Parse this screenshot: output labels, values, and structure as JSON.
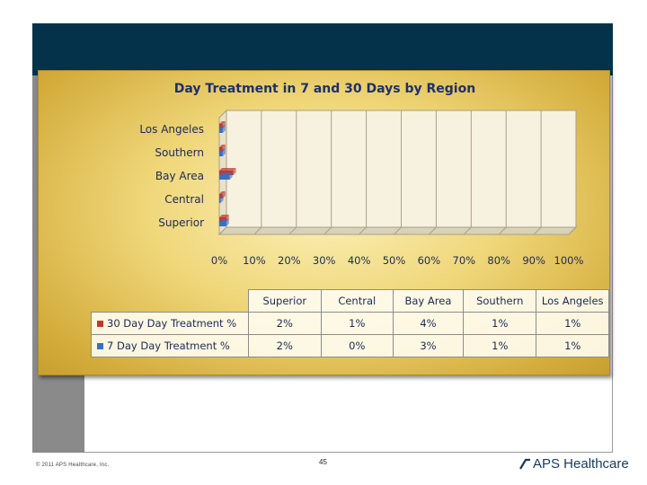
{
  "slide": {
    "copyright": "© 2011 APS Healthcare, Inc.",
    "page_number": "45",
    "logo_text": "APS Healthcare"
  },
  "chart_data": {
    "type": "bar",
    "orientation": "horizontal",
    "three_d": true,
    "title": "Day Treatment in 7 and 30 Days by Region",
    "categories": [
      "Superior",
      "Central",
      "Bay Area",
      "Southern",
      "Los Angeles"
    ],
    "series": [
      {
        "name": "30 Day Day Treatment %",
        "color": "#c0392b",
        "values": [
          2,
          1,
          4,
          1,
          1
        ],
        "labels": [
          "2%",
          "1%",
          "4%",
          "1%",
          "1%"
        ]
      },
      {
        "name": "7 Day Day Treatment %",
        "color": "#3a6fc4",
        "values": [
          2,
          0,
          3,
          1,
          1
        ],
        "labels": [
          "2%",
          "0%",
          "3%",
          "1%",
          "1%"
        ]
      }
    ],
    "xlim": [
      0,
      100
    ],
    "xticks": [
      "0%",
      "10%",
      "20%",
      "30%",
      "40%",
      "50%",
      "60%",
      "70%",
      "80%",
      "90%",
      "100%"
    ],
    "grid": true,
    "legend": "data-table-below"
  }
}
